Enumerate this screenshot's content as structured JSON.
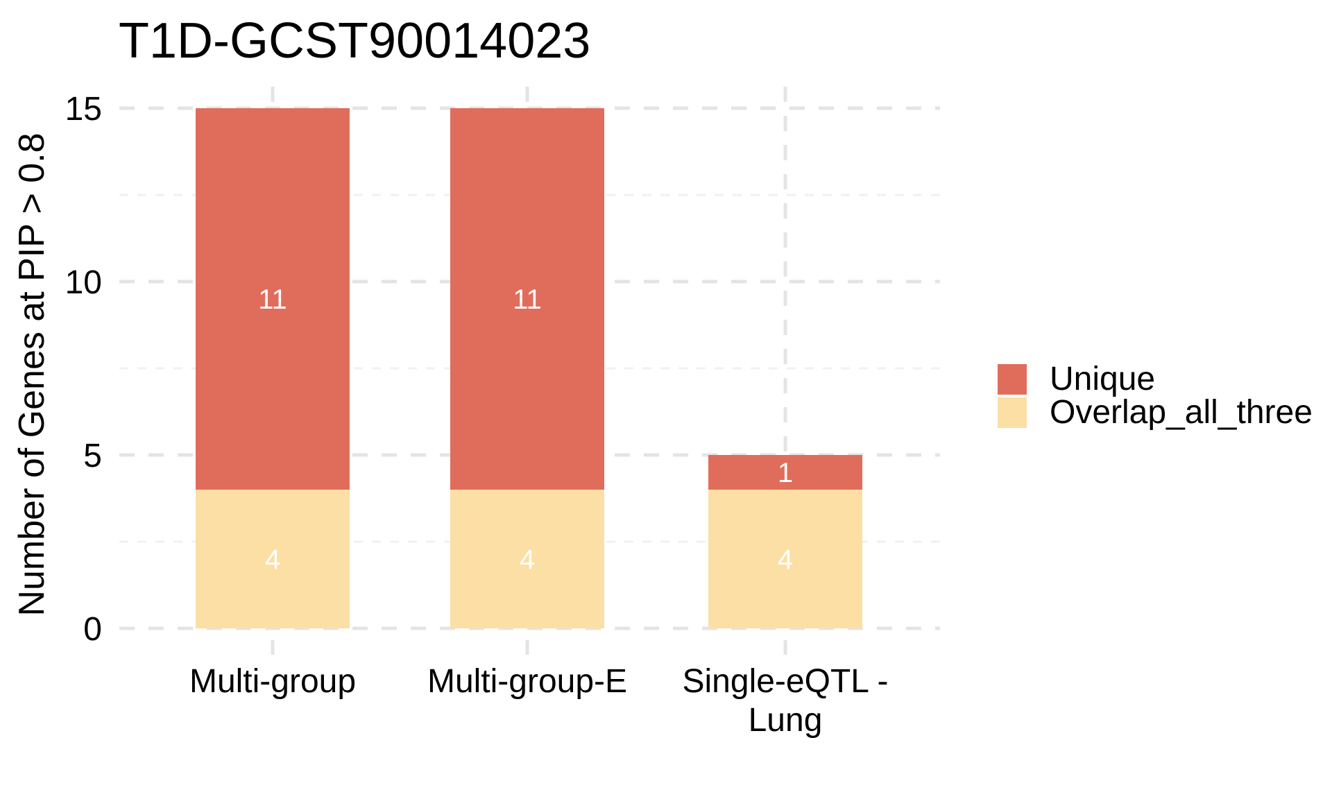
{
  "chart_data": {
    "type": "bar",
    "stacked": true,
    "title": "T1D-GCST90014023",
    "xlabel": "",
    "ylabel": "Number of Genes at PIP > 0.8",
    "categories": [
      "Multi-group",
      "Multi-group-E",
      "Single-eQTL - Lung"
    ],
    "category_display_lines": [
      [
        "Multi-group"
      ],
      [
        "Multi-group-E"
      ],
      [
        "Single-eQTL -",
        "Lung"
      ]
    ],
    "series": [
      {
        "name": "Overlap_all_three",
        "color": "#fcdfa4",
        "values": [
          4,
          4,
          4
        ]
      },
      {
        "name": "Unique",
        "color": "#e06d5b",
        "values": [
          11,
          11,
          1
        ]
      }
    ],
    "totals": [
      15,
      15,
      5
    ],
    "ylim": [
      0,
      15
    ],
    "yticks": [
      0,
      5,
      10,
      15
    ],
    "yticks_minor": [
      2.5,
      7.5,
      12.5
    ],
    "grid": "dashed",
    "legend_position": "right",
    "legend": {
      "entries": [
        {
          "label": "Unique",
          "color": "#e06d5b"
        },
        {
          "label": "Overlap_all_three",
          "color": "#fcdfa4"
        }
      ]
    },
    "value_label_color": "#ffffff"
  }
}
